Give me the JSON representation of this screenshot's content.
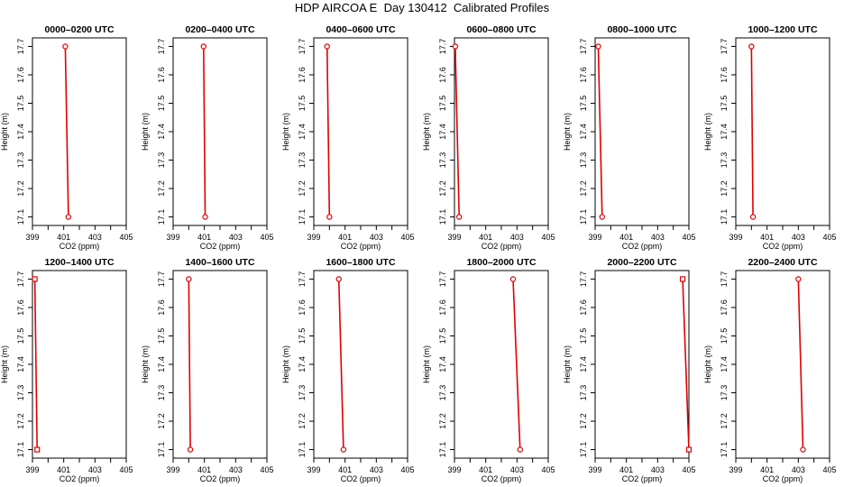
{
  "title": "HDP AIRCOA E  Day 130412  Calibrated Profiles",
  "chart_data": {
    "type": "line",
    "xlabel": "CO2 (ppm)",
    "ylabel": "Height (m)",
    "xlim": [
      399,
      405
    ],
    "ylim": [
      17.07,
      17.73
    ],
    "xticks": [
      399,
      400,
      401,
      402,
      403,
      404,
      405
    ],
    "xtick_labels": [
      "399",
      "",
      "401",
      "",
      "403",
      "",
      "405"
    ],
    "yticks": [
      17.1,
      17.2,
      17.3,
      17.4,
      17.5,
      17.6,
      17.7
    ],
    "ytick_labels": [
      "17.1",
      "17.2",
      "17.3",
      "17.4",
      "17.5",
      "17.6",
      "17.7"
    ],
    "grid": false,
    "series_color": "#e00000",
    "panels": [
      {
        "title": "0000–0200 UTC",
        "marker": "circle",
        "x": [
          401.1,
          401.3
        ],
        "y": [
          17.7,
          17.1
        ]
      },
      {
        "title": "0200–0400 UTC",
        "marker": "circle",
        "x": [
          400.95,
          401.05
        ],
        "y": [
          17.7,
          17.1
        ]
      },
      {
        "title": "0400–0600 UTC",
        "marker": "circle",
        "x": [
          399.85,
          400.0
        ],
        "y": [
          17.7,
          17.1
        ]
      },
      {
        "title": "0600–0800 UTC",
        "marker": "circle",
        "x": [
          399.05,
          399.3
        ],
        "y": [
          17.7,
          17.1
        ]
      },
      {
        "title": "0800–1000 UTC",
        "marker": "circle",
        "x": [
          399.2,
          399.45
        ],
        "y": [
          17.7,
          17.1
        ]
      },
      {
        "title": "1000–1200 UTC",
        "marker": "circle",
        "x": [
          400.0,
          400.1
        ],
        "y": [
          17.7,
          17.1
        ]
      },
      {
        "title": "1200–1400 UTC",
        "marker": "square",
        "x": [
          399.15,
          399.3
        ],
        "y": [
          17.7,
          17.1
        ]
      },
      {
        "title": "1400–1600 UTC",
        "marker": "circle",
        "x": [
          400.0,
          400.1
        ],
        "y": [
          17.7,
          17.1
        ]
      },
      {
        "title": "1600–1800 UTC",
        "marker": "circle",
        "x": [
          400.6,
          400.9
        ],
        "y": [
          17.7,
          17.1
        ]
      },
      {
        "title": "1800–2000 UTC",
        "marker": "circle",
        "x": [
          402.75,
          403.2
        ],
        "y": [
          17.7,
          17.1
        ]
      },
      {
        "title": "2000–2200 UTC",
        "marker": "square",
        "x": [
          404.6,
          405.0
        ],
        "y": [
          17.7,
          17.1
        ]
      },
      {
        "title": "2200–2400 UTC",
        "marker": "circle",
        "x": [
          403.0,
          403.3
        ],
        "y": [
          17.7,
          17.1
        ]
      }
    ]
  }
}
